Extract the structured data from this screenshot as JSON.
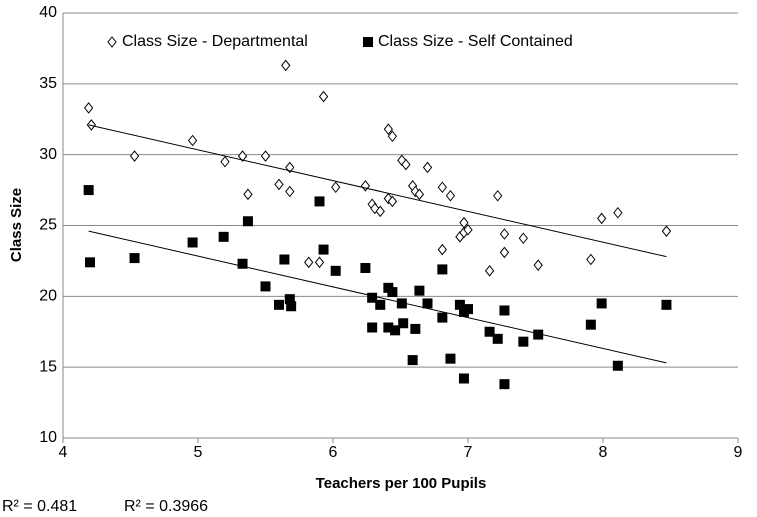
{
  "chart_data": {
    "type": "scatter",
    "xlabel": "Teachers per 100 Pupils",
    "ylabel": "Class Size",
    "xlim": [
      4,
      9
    ],
    "xticks": [
      4,
      5,
      6,
      7,
      8,
      9
    ],
    "ylim": [
      10,
      40
    ],
    "yticks": [
      10,
      15,
      20,
      25,
      30,
      35,
      40
    ],
    "grid": true,
    "legend": "top",
    "series": [
      {
        "name": "Class Size - Departmental",
        "color": "#000000",
        "marker": "diamond",
        "x": [
          4.19,
          4.21,
          4.53,
          4.96,
          5.2,
          5.33,
          5.37,
          5.5,
          5.6,
          5.65,
          5.68,
          5.68,
          5.93,
          5.82,
          5.9,
          6.02,
          6.24,
          6.29,
          6.31,
          6.35,
          6.41,
          6.41,
          6.44,
          6.44,
          6.51,
          6.54,
          6.59,
          6.61,
          6.64,
          6.7,
          6.81,
          6.87,
          6.81,
          6.94,
          6.97,
          6.97,
          7.0,
          7.16,
          7.22,
          7.27,
          7.27,
          7.41,
          7.52,
          7.91,
          7.99,
          8.11,
          8.47
        ],
        "values": [
          33.3,
          32.1,
          29.9,
          31.0,
          29.5,
          29.9,
          27.2,
          29.9,
          27.9,
          36.3,
          29.1,
          27.4,
          34.1,
          22.4,
          22.4,
          27.7,
          27.8,
          26.5,
          26.2,
          26.0,
          26.9,
          31.8,
          31.3,
          26.7,
          29.6,
          29.3,
          27.8,
          27.4,
          27.2,
          29.1,
          27.7,
          27.1,
          23.3,
          24.2,
          25.2,
          24.5,
          24.7,
          21.8,
          27.1,
          24.4,
          23.1,
          24.1,
          22.2,
          22.6,
          25.5,
          25.9,
          24.6
        ],
        "trendline": {
          "x": [
            4.19,
            8.47
          ],
          "y": [
            32.1,
            22.8
          ]
        }
      },
      {
        "name": "Class Size - Self Contained",
        "color": "#000000",
        "marker": "square",
        "x": [
          4.19,
          4.2,
          4.53,
          4.96,
          5.19,
          5.33,
          5.37,
          5.5,
          5.6,
          5.64,
          5.68,
          5.69,
          5.9,
          5.93,
          6.02,
          6.24,
          6.29,
          6.29,
          6.35,
          6.41,
          6.41,
          6.44,
          6.46,
          6.51,
          6.52,
          6.59,
          6.61,
          6.64,
          6.7,
          6.81,
          6.81,
          6.87,
          6.94,
          6.97,
          6.97,
          7.0,
          7.16,
          7.22,
          7.27,
          7.27,
          7.41,
          7.52,
          7.91,
          7.99,
          8.11,
          8.47
        ],
        "values": [
          27.5,
          22.4,
          22.7,
          23.8,
          24.2,
          22.3,
          25.3,
          20.7,
          19.4,
          22.6,
          19.8,
          19.3,
          26.7,
          23.3,
          21.8,
          22.0,
          19.9,
          17.8,
          19.4,
          20.6,
          17.8,
          20.3,
          17.6,
          19.5,
          18.1,
          15.5,
          17.7,
          20.4,
          19.5,
          18.5,
          21.9,
          15.6,
          19.4,
          14.2,
          18.9,
          19.1,
          17.5,
          17.0,
          19.0,
          13.8,
          16.8,
          17.3,
          18.0,
          19.5,
          15.1,
          19.4
        ],
        "trendline": {
          "x": [
            4.19,
            8.47
          ],
          "y": [
            24.6,
            15.3
          ]
        }
      }
    ],
    "annotations": [
      "R² = 0.481",
      "R² = 0.3966"
    ]
  }
}
